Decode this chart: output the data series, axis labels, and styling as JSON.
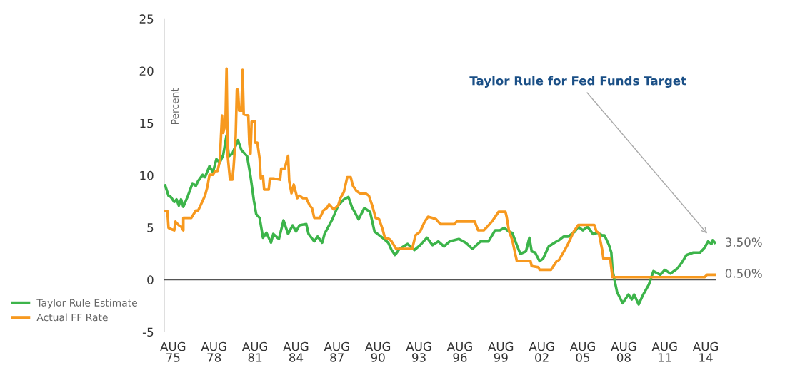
{
  "chart_data": {
    "type": "line",
    "ylabel": "Percent",
    "xlim": [
      "1974-12",
      "2015-05"
    ],
    "ylim": [
      -5,
      25
    ],
    "xticks": [
      {
        "value": "1975-08",
        "label": "AUG\n75"
      },
      {
        "value": "1978-08",
        "label": "AUG\n78"
      },
      {
        "value": "1981-08",
        "label": "AUG\n81"
      },
      {
        "value": "1984-08",
        "label": "AUG\n84"
      },
      {
        "value": "1987-08",
        "label": "AUG\n87"
      },
      {
        "value": "1990-08",
        "label": "AUG\n90"
      },
      {
        "value": "1993-08",
        "label": "AUG\n93"
      },
      {
        "value": "1996-08",
        "label": "AUG\n96"
      },
      {
        "value": "1999-08",
        "label": "AUG\n99"
      },
      {
        "value": "2002-08",
        "label": "AUG\n02"
      },
      {
        "value": "2005-08",
        "label": "AUG\n05"
      },
      {
        "value": "2008-08",
        "label": "AUG\n08"
      },
      {
        "value": "2011-08",
        "label": "AUG\n11"
      },
      {
        "value": "2014-08",
        "label": "AUG\n14"
      }
    ],
    "yticks": [
      -5,
      0,
      5,
      10,
      15,
      20,
      25
    ],
    "grid": false,
    "legend": "bottom left",
    "marker": "none",
    "line_style": "solid",
    "ref_lines": [
      {
        "axis": "y",
        "value": 0,
        "label": null,
        "color": "#555555"
      }
    ],
    "annotations": [
      "Taylor Rule for Fed Funds Target",
      {
        "text": "3.50%",
        "x": "2015-04",
        "y": 3.5
      },
      {
        "text": "0.50%",
        "x": "2015-04",
        "y": 0.5
      }
    ],
    "series": [
      {
        "name": "Taylor Rule Estimate",
        "color": "#3cb44a",
        "x": [
          "1975-01",
          "1975-04",
          "1975-06",
          "1975-09",
          "1975-11",
          "1976-01",
          "1976-03",
          "1976-05",
          "1976-09",
          "1977-01",
          "1977-04",
          "1977-06",
          "1977-10",
          "1977-12",
          "1978-04",
          "1978-07",
          "1978-10",
          "1979-01",
          "1979-04",
          "1979-07",
          "1979-09",
          "1979-12",
          "1980-05",
          "1980-08",
          "1981-01",
          "1981-04",
          "1981-07",
          "1981-09",
          "1981-12",
          "1982-03",
          "1982-06",
          "1982-10",
          "1982-12",
          "1983-05",
          "1983-09",
          "1984-01",
          "1984-05",
          "1984-08",
          "1984-11",
          "1985-05",
          "1985-07",
          "1985-12",
          "1986-03",
          "1986-07",
          "1986-09",
          "1987-04",
          "1987-09",
          "1988-02",
          "1988-06",
          "1988-09",
          "1988-12",
          "1989-03",
          "1989-08",
          "1990-01",
          "1990-05",
          "1990-12",
          "1991-05",
          "1991-08",
          "1991-11",
          "1992-03",
          "1992-10",
          "1993-04",
          "1993-09",
          "1994-03",
          "1994-08",
          "1995-01",
          "1995-06",
          "1995-11",
          "1996-07",
          "1997-01",
          "1997-07",
          "1998-02",
          "1998-09",
          "1999-03",
          "1999-07",
          "1999-11",
          "2000-03",
          "2000-06",
          "2000-10",
          "2001-01",
          "2001-06",
          "2001-09",
          "2001-11",
          "2002-02",
          "2002-06",
          "2002-09",
          "2003-02",
          "2003-09",
          "2003-11",
          "2004-03",
          "2004-07",
          "2005-01",
          "2005-04",
          "2005-08",
          "2005-12",
          "2006-05",
          "2006-09",
          "2007-01",
          "2007-03",
          "2007-07",
          "2007-09",
          "2007-10",
          "2008-02",
          "2008-07",
          "2008-12",
          "2009-03",
          "2009-05",
          "2009-09",
          "2010-01",
          "2010-06",
          "2010-10",
          "2011-04",
          "2011-08",
          "2012-01",
          "2012-07",
          "2012-11",
          "2013-03",
          "2013-09",
          "2014-03",
          "2014-07",
          "2014-10",
          "2015-01",
          "2015-02",
          "2015-04"
        ],
        "values": [
          9.04,
          8.04,
          7.92,
          7.45,
          7.69,
          7.1,
          7.69,
          6.98,
          8.04,
          9.23,
          8.99,
          9.46,
          10.05,
          9.82,
          10.88,
          10.29,
          11.54,
          11.23,
          11.94,
          13.83,
          11.83,
          12.06,
          13.36,
          12.42,
          11.83,
          9.93,
          7.57,
          6.27,
          5.92,
          4.02,
          4.5,
          3.55,
          4.38,
          3.91,
          5.68,
          4.38,
          5.21,
          4.62,
          5.21,
          5.33,
          4.38,
          3.67,
          4.14,
          3.55,
          4.38,
          5.8,
          7.1,
          7.69,
          7.92,
          6.98,
          6.39,
          5.79,
          6.86,
          6.5,
          4.61,
          4.02,
          3.55,
          2.84,
          2.37,
          2.96,
          3.43,
          2.84,
          3.31,
          4.02,
          3.31,
          3.67,
          3.19,
          3.67,
          3.9,
          3.55,
          2.96,
          3.67,
          3.67,
          4.73,
          4.73,
          4.97,
          4.61,
          4.49,
          3.31,
          2.48,
          2.72,
          4.02,
          2.72,
          2.6,
          1.78,
          2.01,
          3.19,
          3.67,
          3.78,
          4.13,
          4.13,
          4.61,
          5.08,
          4.73,
          5.08,
          4.37,
          4.49,
          4.25,
          4.25,
          3.31,
          2.6,
          0.94,
          -1.18,
          -2.25,
          -1.42,
          -1.89,
          -1.42,
          -2.37,
          -1.42,
          -0.47,
          0.82,
          0.47,
          0.94,
          0.59,
          1.06,
          1.65,
          2.36,
          2.6,
          2.6,
          3.07,
          3.66,
          3.43,
          3.78,
          3.55
        ]
      },
      {
        "name": "Actual FF Rate",
        "color": "#f7991f",
        "x": [
          "1975-01",
          "1975-03",
          "1975-04",
          "1975-06",
          "1975-09",
          "1975-10",
          "1976-01",
          "1976-03",
          "1976-05",
          "1976-05",
          "1976-12",
          "1977-04",
          "1977-06",
          "1977-09",
          "1977-12",
          "1978-02",
          "1978-04",
          "1978-07",
          "1978-09",
          "1978-11",
          "1979-01",
          "1979-03",
          "1979-04",
          "1979-06",
          "1979-07",
          "1979-08",
          "1979-10",
          "1979-12",
          "1980-01",
          "1980-03",
          "1980-04",
          "1980-05",
          "1980-06",
          "1980-08",
          "1980-09",
          "1980-10",
          "1981-02",
          "1981-03",
          "1981-04",
          "1981-05",
          "1981-08",
          "1981-08",
          "1981-10",
          "1981-12",
          "1982-01",
          "1982-03",
          "1982-04",
          "1982-08",
          "1982-09",
          "1982-12",
          "1983-06",
          "1983-07",
          "1983-10",
          "1984-01",
          "1984-02",
          "1984-04",
          "1984-06",
          "1984-08",
          "1984-09",
          "1984-11",
          "1985-02",
          "1985-05",
          "1985-08",
          "1985-10",
          "1985-12",
          "1986-05",
          "1986-08",
          "1986-11",
          "1987-01",
          "1987-05",
          "1987-09",
          "1987-11",
          "1988-02",
          "1988-05",
          "1988-08",
          "1988-10",
          "1989-01",
          "1989-04",
          "1989-09",
          "1989-12",
          "1990-03",
          "1990-06",
          "1990-09",
          "1990-12",
          "1991-02",
          "1991-06",
          "1991-08",
          "1991-12",
          "1993-02",
          "1993-05",
          "1993-09",
          "1994-01",
          "1994-04",
          "1994-08",
          "1994-11",
          "1995-03",
          "1996-03",
          "1996-05",
          "1997-09",
          "1997-12",
          "1998-05",
          "1998-09",
          "1998-12",
          "1999-06",
          "1999-12",
          "2000-01",
          "2000-03",
          "2000-06",
          "2000-10",
          "2001-10",
          "2001-11",
          "2002-05",
          "2002-06",
          "2003-04",
          "2003-09",
          "2003-11",
          "2004-04",
          "2004-07",
          "2004-12",
          "2005-04",
          "2006-06",
          "2006-08",
          "2006-10",
          "2007-01",
          "2007-02",
          "2007-08",
          "2007-10",
          "2014-07",
          "2014-09",
          "2015-04"
        ],
        "values": [
          6.58,
          6.58,
          4.97,
          4.85,
          4.73,
          5.56,
          5.21,
          5.09,
          4.73,
          5.92,
          5.92,
          6.63,
          6.63,
          7.33,
          8.04,
          8.87,
          10.05,
          10.05,
          10.41,
          10.41,
          11.35,
          15.73,
          14.07,
          14.9,
          20.22,
          11.83,
          9.58,
          9.58,
          10.64,
          13.72,
          18.21,
          18.21,
          16.2,
          16.2,
          20.1,
          15.84,
          15.73,
          13.01,
          12.06,
          15.14,
          15.14,
          13.13,
          13.13,
          11.59,
          9.7,
          9.93,
          8.63,
          8.63,
          9.7,
          9.7,
          9.58,
          10.64,
          10.64,
          11.87,
          9.46,
          8.28,
          9.11,
          8.28,
          7.81,
          8.04,
          7.81,
          7.81,
          7.1,
          6.86,
          5.92,
          5.92,
          6.63,
          6.86,
          7.21,
          6.74,
          7.1,
          7.81,
          8.4,
          9.82,
          9.82,
          8.99,
          8.51,
          8.28,
          8.28,
          8.04,
          7.09,
          5.91,
          5.79,
          4.85,
          4.02,
          3.9,
          3.67,
          2.96,
          2.96,
          4.26,
          4.61,
          5.56,
          6.03,
          5.91,
          5.79,
          5.32,
          5.32,
          5.56,
          5.56,
          4.73,
          4.73,
          5.2,
          5.56,
          6.5,
          6.5,
          6.03,
          4.73,
          3.79,
          1.78,
          1.78,
          1.3,
          1.19,
          0.95,
          0.95,
          1.78,
          1.89,
          2.83,
          3.43,
          4.61,
          5.25,
          5.25,
          4.61,
          4.49,
          2.83,
          2.01,
          2.01,
          0.24,
          0.24,
          0.47,
          0.47
        ]
      }
    ]
  }
}
